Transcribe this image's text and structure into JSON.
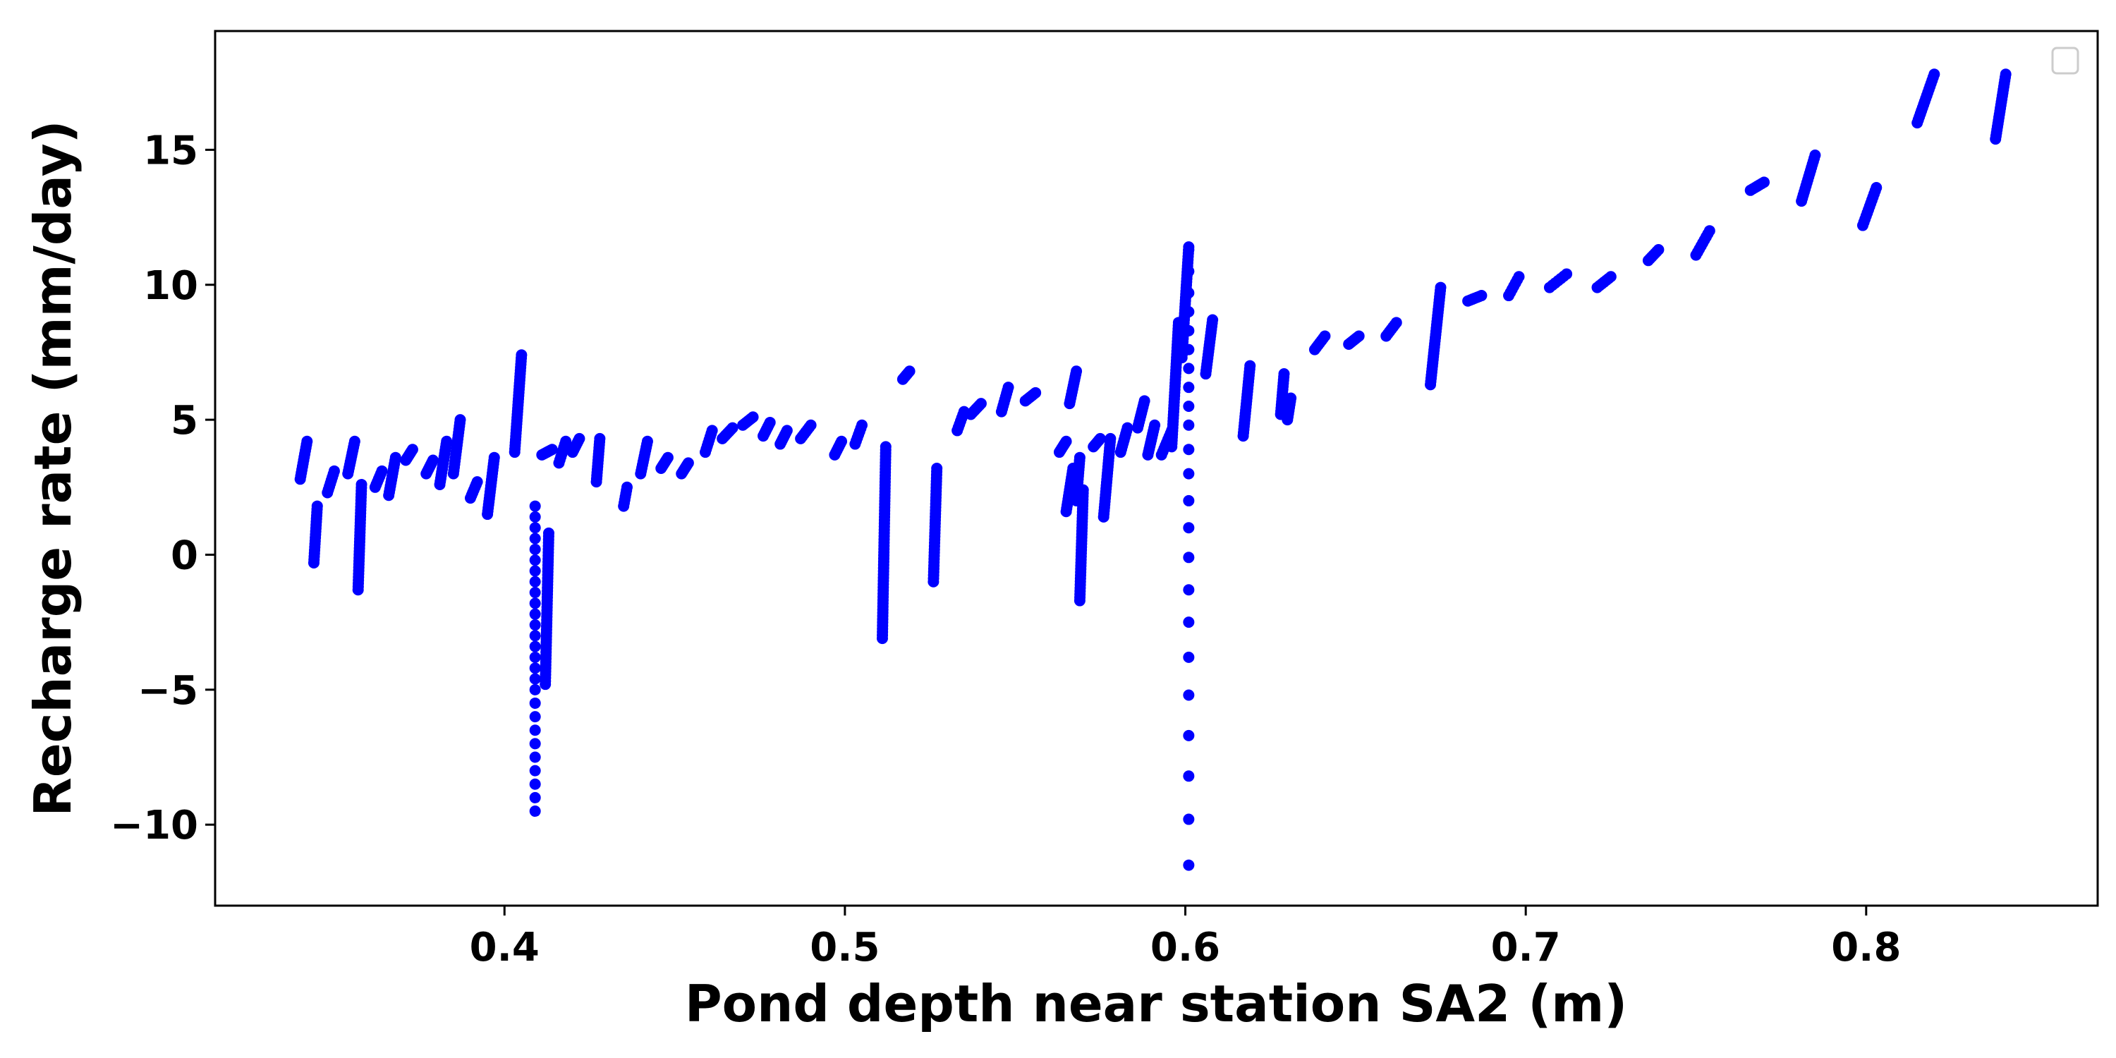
{
  "chart_data": {
    "type": "scatter",
    "title": "",
    "xlabel": "Pond depth near station SA2 (m)",
    "ylabel": "Recharge rate (mm/day)",
    "xlim": [
      0.315,
      0.868
    ],
    "ylim": [
      -13.0,
      19.4
    ],
    "xticks": [
      0.4,
      0.5,
      0.6,
      0.7,
      0.8
    ],
    "xtick_labels": [
      "0.4",
      "0.5",
      "0.6",
      "0.7",
      "0.8"
    ],
    "yticks": [
      -10,
      -5,
      0,
      5,
      10,
      15
    ],
    "ytick_labels": [
      "−10",
      "−5",
      "0",
      "5",
      "10",
      "15"
    ],
    "grid": false,
    "legend": {
      "position": "top-right",
      "entries": []
    },
    "marker_color": "#0000ff",
    "dense_segments": [
      [
        0.34,
        2.8,
        0.342,
        4.2
      ],
      [
        0.344,
        -0.3,
        0.345,
        1.8
      ],
      [
        0.348,
        2.3,
        0.35,
        3.1
      ],
      [
        0.354,
        3.0,
        0.356,
        4.2
      ],
      [
        0.357,
        -1.3,
        0.358,
        2.6
      ],
      [
        0.362,
        2.5,
        0.364,
        3.1
      ],
      [
        0.366,
        2.2,
        0.368,
        3.6
      ],
      [
        0.371,
        3.5,
        0.373,
        3.9
      ],
      [
        0.377,
        3.0,
        0.379,
        3.5
      ],
      [
        0.381,
        2.6,
        0.383,
        4.2
      ],
      [
        0.385,
        3.0,
        0.387,
        5.0
      ],
      [
        0.39,
        2.1,
        0.392,
        2.7
      ],
      [
        0.395,
        1.5,
        0.397,
        3.6
      ],
      [
        0.403,
        3.8,
        0.405,
        7.4
      ],
      [
        0.412,
        -4.8,
        0.413,
        0.8
      ],
      [
        0.411,
        3.7,
        0.414,
        3.9
      ],
      [
        0.416,
        3.4,
        0.418,
        4.2
      ],
      [
        0.42,
        3.8,
        0.422,
        4.3
      ],
      [
        0.427,
        2.7,
        0.428,
        4.3
      ],
      [
        0.435,
        1.8,
        0.436,
        2.5
      ],
      [
        0.44,
        3.0,
        0.442,
        4.2
      ],
      [
        0.446,
        3.2,
        0.448,
        3.6
      ],
      [
        0.452,
        3.0,
        0.454,
        3.4
      ],
      [
        0.459,
        3.8,
        0.461,
        4.6
      ],
      [
        0.464,
        4.3,
        0.467,
        4.7
      ],
      [
        0.47,
        4.8,
        0.473,
        5.1
      ],
      [
        0.476,
        4.4,
        0.478,
        4.9
      ],
      [
        0.481,
        4.1,
        0.483,
        4.6
      ],
      [
        0.487,
        4.3,
        0.49,
        4.8
      ],
      [
        0.497,
        3.7,
        0.499,
        4.2
      ],
      [
        0.503,
        4.1,
        0.505,
        4.8
      ],
      [
        0.511,
        -3.1,
        0.512,
        4.0
      ],
      [
        0.517,
        6.5,
        0.519,
        6.8
      ],
      [
        0.526,
        -1.0,
        0.527,
        3.2
      ],
      [
        0.533,
        4.6,
        0.535,
        5.3
      ],
      [
        0.537,
        5.2,
        0.54,
        5.6
      ],
      [
        0.546,
        5.3,
        0.548,
        6.2
      ],
      [
        0.553,
        5.7,
        0.556,
        6.0
      ],
      [
        0.563,
        3.8,
        0.565,
        4.2
      ],
      [
        0.565,
        1.6,
        0.567,
        3.2
      ],
      [
        0.566,
        5.6,
        0.568,
        6.8
      ],
      [
        0.568,
        2.0,
        0.569,
        3.6
      ],
      [
        0.569,
        -1.7,
        0.57,
        2.4
      ],
      [
        0.573,
        4.0,
        0.575,
        4.3
      ],
      [
        0.576,
        1.4,
        0.578,
        4.3
      ],
      [
        0.581,
        3.8,
        0.583,
        4.7
      ],
      [
        0.586,
        4.7,
        0.588,
        5.7
      ],
      [
        0.589,
        3.7,
        0.591,
        4.8
      ],
      [
        0.593,
        3.7,
        0.596,
        4.6
      ],
      [
        0.596,
        4.0,
        0.598,
        8.6
      ],
      [
        0.599,
        7.3,
        0.601,
        11.4
      ],
      [
        0.606,
        6.7,
        0.608,
        8.7
      ],
      [
        0.617,
        4.4,
        0.619,
        7.0
      ],
      [
        0.628,
        5.2,
        0.629,
        6.7
      ],
      [
        0.63,
        5.0,
        0.631,
        5.8
      ],
      [
        0.638,
        7.6,
        0.641,
        8.1
      ],
      [
        0.648,
        7.8,
        0.651,
        8.1
      ],
      [
        0.659,
        8.1,
        0.662,
        8.6
      ],
      [
        0.672,
        6.3,
        0.675,
        9.9
      ],
      [
        0.683,
        9.4,
        0.687,
        9.6
      ],
      [
        0.695,
        9.6,
        0.698,
        10.3
      ],
      [
        0.707,
        9.9,
        0.712,
        10.4
      ],
      [
        0.721,
        9.9,
        0.725,
        10.3
      ],
      [
        0.736,
        10.9,
        0.739,
        11.3
      ],
      [
        0.75,
        11.1,
        0.754,
        12.0
      ],
      [
        0.766,
        13.5,
        0.77,
        13.8
      ],
      [
        0.781,
        13.1,
        0.785,
        14.8
      ],
      [
        0.799,
        12.2,
        0.803,
        13.6
      ],
      [
        0.815,
        16.0,
        0.82,
        17.8
      ],
      [
        0.838,
        15.4,
        0.841,
        17.8
      ]
    ],
    "sparse_columns": [
      {
        "x": 0.409,
        "y": [
          1.8,
          1.4,
          1.0,
          0.6,
          0.2,
          -0.2,
          -0.6,
          -1.0,
          -1.4,
          -1.8,
          -2.2,
          -2.6,
          -3.0,
          -3.4,
          -3.8,
          -4.2,
          -4.6,
          -5.0,
          -5.5,
          -6.0,
          -6.5,
          -7.0,
          -7.5,
          -8.0,
          -8.5,
          -9.0,
          -9.5
        ]
      },
      {
        "x": 0.601,
        "y": [
          11.3,
          10.5,
          9.7,
          9.0,
          8.3,
          7.6,
          6.9,
          6.2,
          5.5,
          4.8,
          3.9,
          3.0,
          2.0,
          1.0,
          -0.1,
          -1.3,
          -2.5,
          -3.8,
          -5.2,
          -6.7,
          -8.2,
          -9.8,
          -11.5
        ]
      }
    ]
  }
}
